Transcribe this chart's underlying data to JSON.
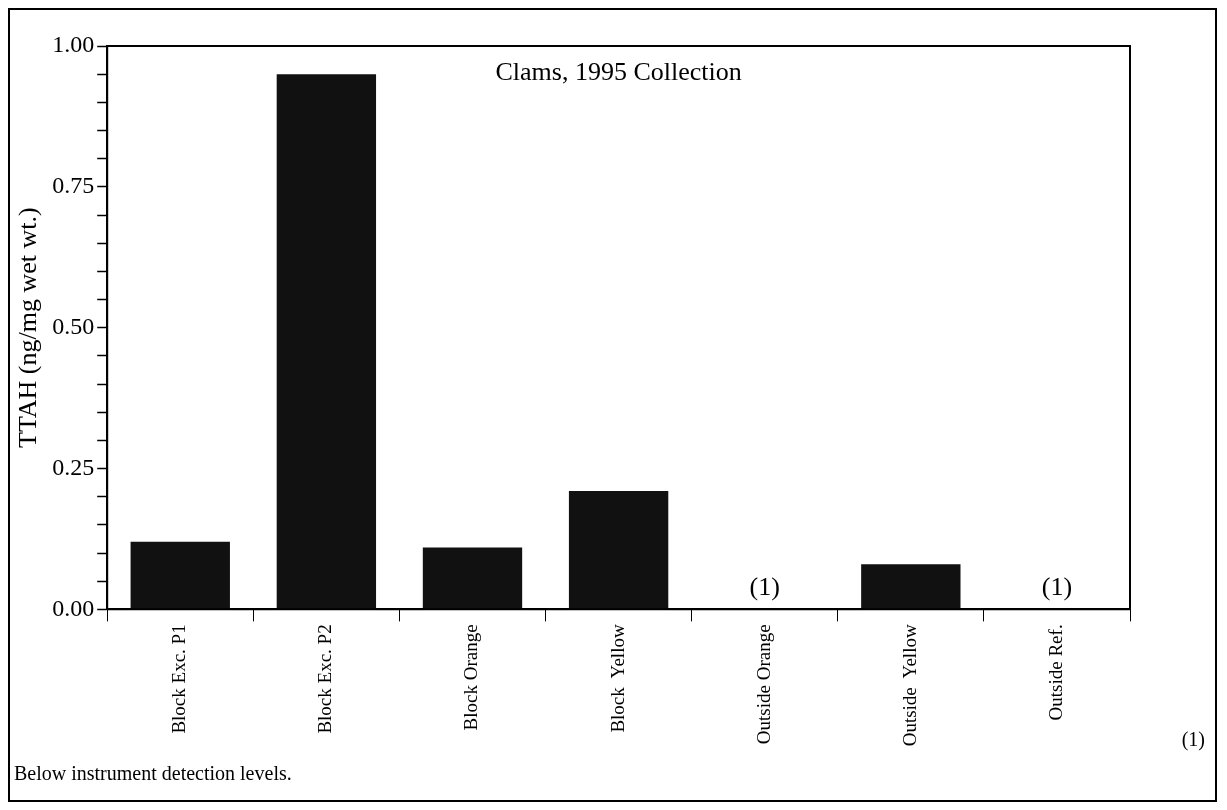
{
  "chart_data": {
    "type": "bar",
    "title": "Clams, 1995 Collection",
    "ylabel": "TTAH (ng/mg wet wt.)",
    "categories": [
      "Block Exc. P1",
      "Block Exc. P2",
      "Block Orange",
      "Block  Yellow",
      "Outside Orange",
      "Outside  Yellow",
      "Outside Ref."
    ],
    "values": [
      0.12,
      0.95,
      0.11,
      0.21,
      null,
      0.08,
      null
    ],
    "value_labels": [
      null,
      null,
      null,
      null,
      "(1)",
      null,
      "(1)"
    ],
    "color": "#111111",
    "ylim": [
      0,
      1
    ],
    "yticks": [
      {
        "value": 0,
        "label": "0.00"
      },
      {
        "value": 0.05,
        "label": null
      },
      {
        "value": 0.1,
        "label": null
      },
      {
        "value": 0.15,
        "label": null
      },
      {
        "value": 0.2,
        "label": null
      },
      {
        "value": 0.25,
        "label": "0.25"
      },
      {
        "value": 0.3,
        "label": null
      },
      {
        "value": 0.35,
        "label": null
      },
      {
        "value": 0.4,
        "label": null
      },
      {
        "value": 0.45,
        "label": null
      },
      {
        "value": 0.5,
        "label": "0.50"
      },
      {
        "value": 0.55,
        "label": null
      },
      {
        "value": 0.6,
        "label": null
      },
      {
        "value": 0.65,
        "label": null
      },
      {
        "value": 0.7,
        "label": null
      },
      {
        "value": 0.75,
        "label": "0.75"
      },
      {
        "value": 0.8,
        "label": null
      },
      {
        "value": 0.85,
        "label": null
      },
      {
        "value": 0.9,
        "label": null
      },
      {
        "value": 0.95,
        "label": null
      },
      {
        "value": 1,
        "label": "1.00"
      }
    ],
    "grid": false,
    "legend": false,
    "annotations": [
      "(1)",
      "Below instrument detection levels."
    ]
  }
}
